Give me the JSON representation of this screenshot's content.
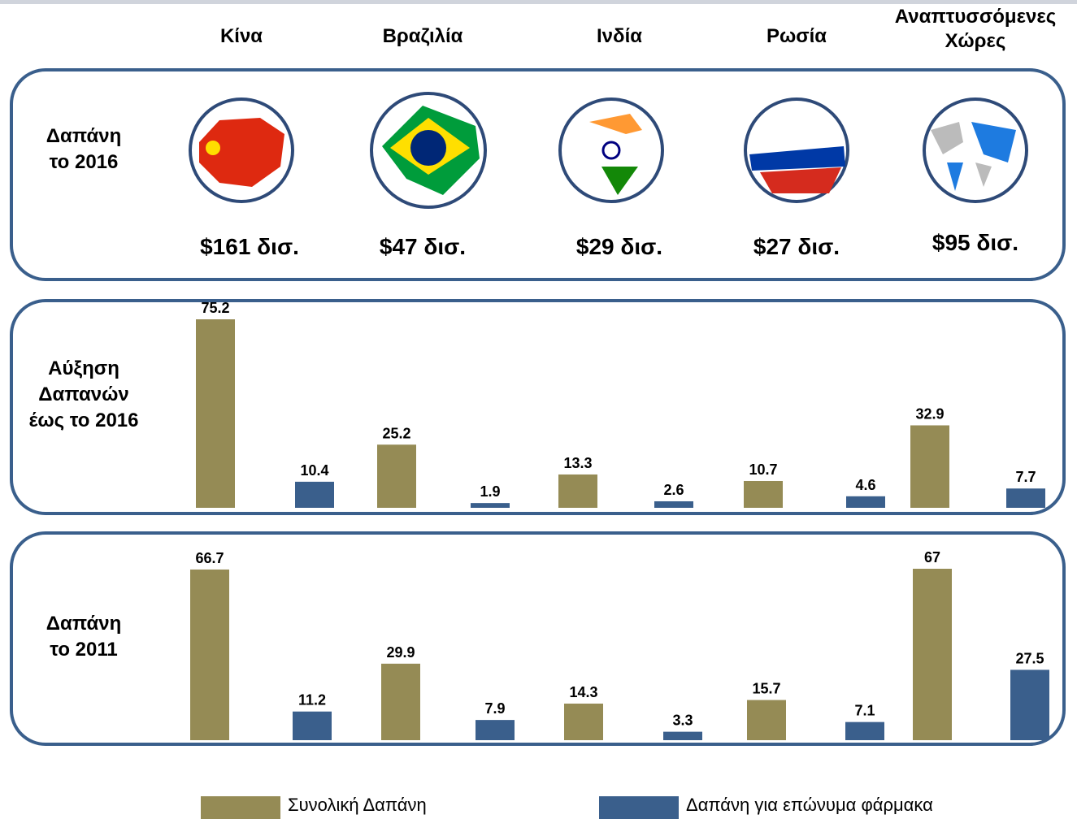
{
  "spending_2016": {
    "label": "Δαπάνη\nτο 2016",
    "values": [
      "$161 δισ.",
      "$47 δισ.",
      "$29 δισ.",
      "$27 δισ.",
      "$95 δισ."
    ]
  },
  "chart_data": [
    {
      "type": "bar",
      "label": "Αύξηση\nΔαπανών\nέως το 2016",
      "categories": [
        "Κίνα",
        "Βραζιλία",
        "Ινδία",
        "Ρωσία",
        "Αναπτυσσόμενες\nΧώρες"
      ],
      "series": [
        {
          "name": "Συνολική Δαπάνη",
          "color": "#958b55",
          "values": [
            75.2,
            25.2,
            13.3,
            10.7,
            32.9
          ]
        },
        {
          "name": "Δαπάνη για επώνυμα φάρμακα",
          "color": "#3a5f8c",
          "values": [
            10.4,
            1.9,
            2.6,
            4.6,
            7.7
          ]
        }
      ]
    },
    {
      "type": "bar",
      "label": "Δαπάνη\nτο 2011",
      "series": [
        {
          "name": "Συνολική Δαπάνη",
          "color": "#958b55",
          "values": [
            66.7,
            29.9,
            14.3,
            15.7,
            67
          ]
        },
        {
          "name": "Δαπάνη για επώνυμα φάρμακα",
          "color": "#3a5f8c",
          "values": [
            11.2,
            7.9,
            3.3,
            7.1,
            27.5
          ]
        }
      ]
    }
  ]
}
